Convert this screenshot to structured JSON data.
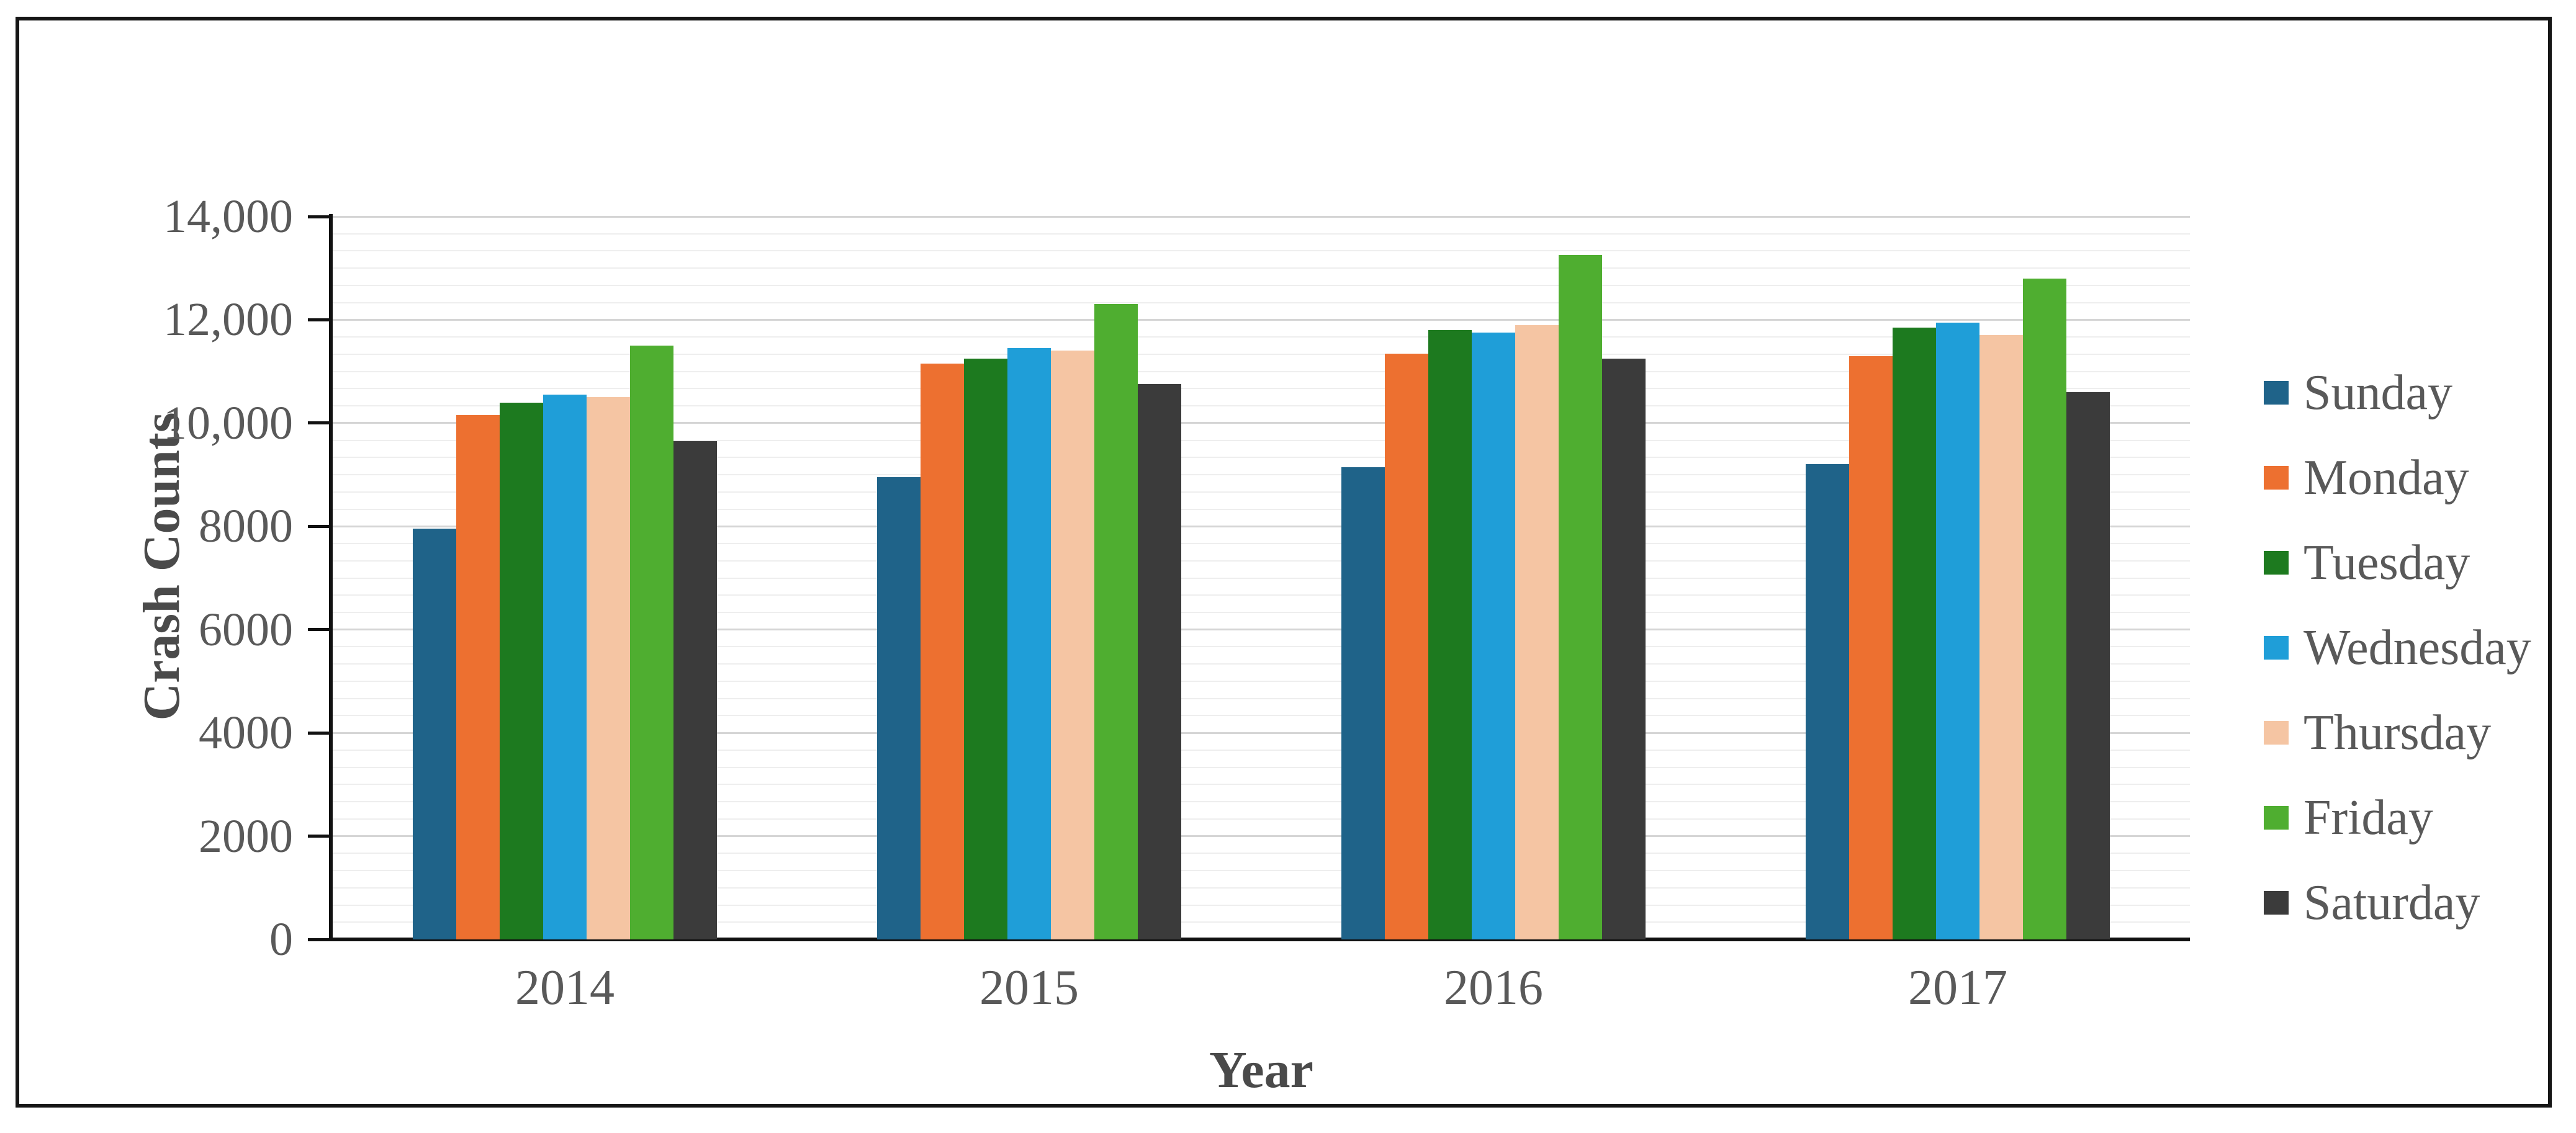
{
  "figure": {
    "background_color": "#ffffff",
    "border_color": "#161616"
  },
  "chart_data": {
    "type": "bar",
    "title": "",
    "xlabel": "Year",
    "ylabel": "Crash Counts",
    "categories": [
      "2014",
      "2015",
      "2016",
      "2017"
    ],
    "series": [
      {
        "name": "Sunday",
        "color": "#1f6389",
        "values": [
          7950,
          8950,
          9150,
          9200
        ]
      },
      {
        "name": "Monday",
        "color": "#ed7030",
        "values": [
          10150,
          11150,
          11350,
          11300
        ]
      },
      {
        "name": "Tuesday",
        "color": "#1d7a1f",
        "values": [
          10400,
          11250,
          11800,
          11850
        ]
      },
      {
        "name": "Wednesday",
        "color": "#1f9ed8",
        "values": [
          10550,
          11450,
          11750,
          11950
        ]
      },
      {
        "name": "Thursday",
        "color": "#f5c5a3",
        "values": [
          10500,
          11400,
          11900,
          11700
        ]
      },
      {
        "name": "Friday",
        "color": "#4fae30",
        "values": [
          11500,
          12300,
          13250,
          12800
        ]
      },
      {
        "name": "Saturday",
        "color": "#3b3b3b",
        "values": [
          9650,
          10750,
          11250,
          10600
        ]
      }
    ],
    "ylim": [
      0,
      14000
    ],
    "y_major_unit": 2000,
    "y_minor_divisions_per_major": 6,
    "y_ticks": [
      {
        "label": "14,000",
        "value": 14000
      },
      {
        "label": "12,000",
        "value": 12000
      },
      {
        "label": "10,000",
        "value": 10000
      },
      {
        "label": "8000",
        "value": 8000
      },
      {
        "label": "6000",
        "value": 6000
      },
      {
        "label": "4000",
        "value": 4000
      },
      {
        "label": "2000",
        "value": 2000
      },
      {
        "label": "0",
        "value": 0
      }
    ],
    "grid": "horizontal major and minor gridlines",
    "legend_position": "right"
  }
}
